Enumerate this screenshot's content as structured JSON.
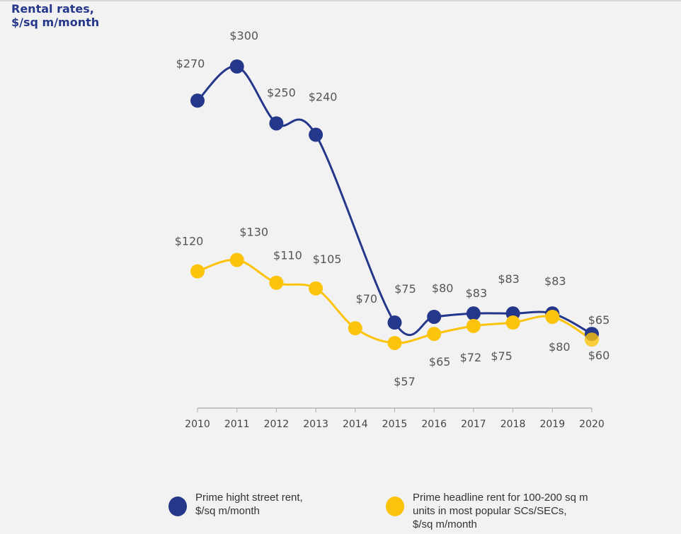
{
  "chart_data": {
    "type": "line",
    "title": "Rental rates,\n$/sq m/month",
    "xlabel": "",
    "ylabel": "",
    "x": [
      "2010",
      "2011",
      "2012",
      "2013",
      "2014",
      "2015",
      "2016",
      "2017",
      "2018",
      "2019",
      "2020"
    ],
    "ylim": [
      0,
      300
    ],
    "grid": false,
    "legend_position": "bottom",
    "series": [
      {
        "name": "Prime hight street rent, $/sq m/month",
        "color": "#25378a",
        "values": [
          270,
          300,
          250,
          240,
          null,
          75,
          80,
          83,
          83,
          83,
          65
        ],
        "labels": [
          "$270",
          "$300",
          "$250",
          "$240",
          "",
          "$75",
          "$80",
          "$83",
          "$83",
          "$83",
          "$65"
        ]
      },
      {
        "name": "Prime headline rent for 100-200 sq m units in most popular SCs/SECs, $/sq m/month",
        "color": "#fcc30b",
        "values": [
          120,
          130,
          110,
          105,
          70,
          57,
          65,
          72,
          75,
          80,
          60
        ],
        "labels": [
          "$120",
          "$130",
          "$110",
          "$105",
          "$70",
          "$57",
          "$65",
          "$72",
          "$75",
          "$80",
          "$60"
        ]
      }
    ]
  },
  "title_lines": [
    "Rental rates,",
    "$/sq m/month"
  ],
  "legend": [
    {
      "lines": [
        "Prime hight street rent,",
        "$/sq m/month"
      ],
      "color": "#25378a"
    },
    {
      "lines": [
        "Prime headline rent for 100-200 sq m",
        "units in most popular SCs/SECs,",
        "$/sq m/month"
      ],
      "color": "#fcc30b"
    }
  ]
}
